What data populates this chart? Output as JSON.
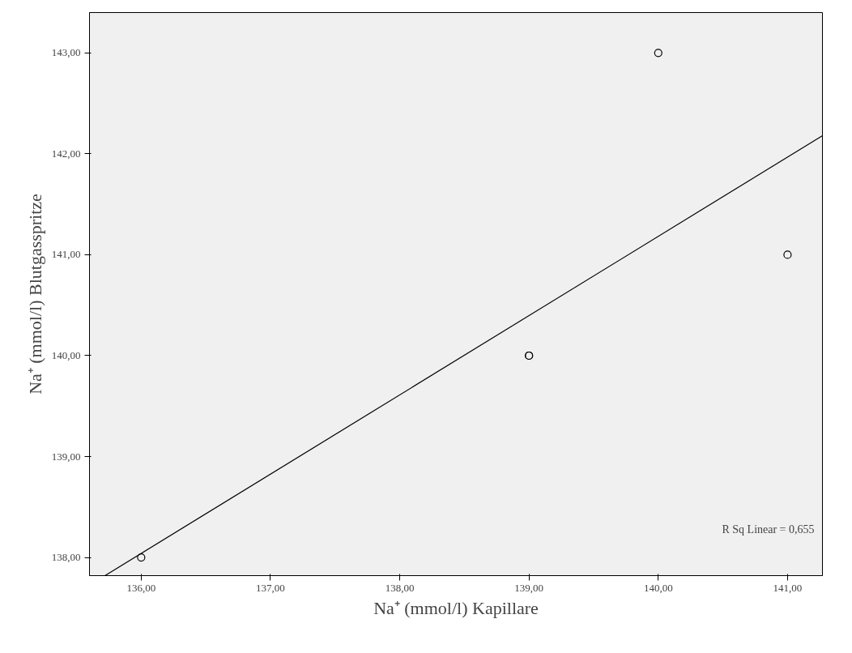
{
  "chart_data": {
    "type": "scatter",
    "xlabel": "Na⁺ (mmol/l) Kapillare",
    "ylabel": "Na⁺ (mmol/l) Blutgasspritze",
    "xlim": [
      135.6,
      141.27
    ],
    "ylim": [
      137.82,
      143.4
    ],
    "xticks": [
      {
        "value": 136,
        "label": "136,00"
      },
      {
        "value": 137,
        "label": "137,00"
      },
      {
        "value": 138,
        "label": "138,00"
      },
      {
        "value": 139,
        "label": "139,00"
      },
      {
        "value": 140,
        "label": "140,00"
      },
      {
        "value": 141,
        "label": "141,00"
      }
    ],
    "yticks": [
      {
        "value": 138,
        "label": "138,00"
      },
      {
        "value": 139,
        "label": "139,00"
      },
      {
        "value": 140,
        "label": "140,00"
      },
      {
        "value": 141,
        "label": "141,00"
      },
      {
        "value": 142,
        "label": "142,00"
      },
      {
        "value": 143,
        "label": "143,00"
      }
    ],
    "grid": false,
    "series": [
      {
        "marker": "circle",
        "color": "#000000",
        "x": [
          136,
          139,
          139,
          140,
          141
        ],
        "values": [
          138,
          140,
          140,
          143,
          141
        ]
      },
      {
        "type": "line",
        "color": "#000000",
        "x": [
          135.72,
          141.27
        ],
        "values": [
          137.82,
          142.18
        ]
      }
    ],
    "annotations": [
      "R Sq Linear = 0,655"
    ]
  }
}
